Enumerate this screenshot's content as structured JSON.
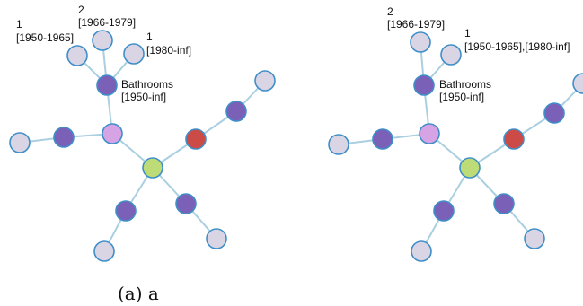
{
  "colors": {
    "edge": "#a9cfe0",
    "node_stroke": "#3f8ec8",
    "leaf": "#d9d5e4",
    "mid": "#7b60b8",
    "center": "#bddc78",
    "pink": "#d6a3e5",
    "red": "#cd4b47"
  },
  "panel_left": {
    "labels": {
      "top_left_count": "1",
      "top_left_range": "[1950-1965]",
      "top_count": "2",
      "top_range": "[1966-1979]",
      "top_right_count": "1",
      "top_right_range": "[1980-inf]",
      "node_name": "Bathrooms",
      "node_range": "[1950-inf]"
    }
  },
  "panel_right": {
    "labels": {
      "top_count": "2",
      "top_range": "[1966-1979]",
      "top_right_count": "1",
      "top_right_range": "[1950-1965],[1980-inf]",
      "node_name": "Bathrooms",
      "node_range": "[1950-inf]"
    }
  },
  "caption": "(a) a"
}
